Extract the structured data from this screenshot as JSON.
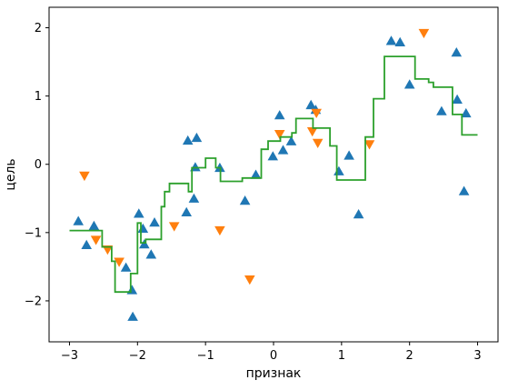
{
  "chart_data": {
    "type": "scatter",
    "title": "",
    "xlabel": "признак",
    "ylabel": "цель",
    "xlim": [
      -3.3,
      3.3
    ],
    "ylim": [
      -2.6,
      2.3
    ],
    "xticks": [
      -3,
      -2,
      -1,
      0,
      1,
      2,
      3
    ],
    "yticks": [
      -2,
      -1,
      0,
      1,
      2
    ],
    "xtick_labels": [
      "−3",
      "−2",
      "−1",
      "0",
      "1",
      "2",
      "3"
    ],
    "ytick_labels": [
      "−2",
      "−1",
      "0",
      "1",
      "2"
    ],
    "grid": false,
    "legend": "none",
    "series": [
      {
        "marker": "triangle-up",
        "color": "#1f77b4",
        "points": [
          [
            -2.87,
            -0.84
          ],
          [
            -2.75,
            -1.19
          ],
          [
            -2.64,
            -0.91
          ],
          [
            -2.17,
            -1.52
          ],
          [
            -2.08,
            -1.85
          ],
          [
            -2.07,
            -2.24
          ],
          [
            -1.98,
            -0.73
          ],
          [
            -1.92,
            -0.95
          ],
          [
            -1.9,
            -1.18
          ],
          [
            -1.8,
            -1.33
          ],
          [
            -1.75,
            -0.86
          ],
          [
            -1.28,
            -0.71
          ],
          [
            -1.26,
            0.34
          ],
          [
            -1.17,
            -0.51
          ],
          [
            -1.15,
            -0.05
          ],
          [
            -1.13,
            0.38
          ],
          [
            -0.79,
            -0.06
          ],
          [
            -0.42,
            -0.54
          ],
          [
            -0.26,
            -0.16
          ],
          [
            -0.01,
            0.11
          ],
          [
            0.09,
            0.71
          ],
          [
            0.14,
            0.2
          ],
          [
            0.26,
            0.33
          ],
          [
            0.55,
            0.86
          ],
          [
            0.62,
            0.79
          ],
          [
            0.96,
            -0.11
          ],
          [
            1.11,
            0.12
          ],
          [
            1.25,
            -0.74
          ],
          [
            1.73,
            1.8
          ],
          [
            1.86,
            1.78
          ],
          [
            2.0,
            1.16
          ],
          [
            2.47,
            0.77
          ],
          [
            2.69,
            1.63
          ],
          [
            2.7,
            0.94
          ],
          [
            2.8,
            -0.4
          ],
          [
            2.83,
            0.74
          ]
        ]
      },
      {
        "marker": "triangle-down",
        "color": "#ff7f0e",
        "points": [
          [
            -2.78,
            -0.16
          ],
          [
            -2.61,
            -1.1
          ],
          [
            -2.44,
            -1.24
          ],
          [
            -2.27,
            -1.42
          ],
          [
            -1.46,
            -0.9
          ],
          [
            -0.79,
            -0.96
          ],
          [
            -0.35,
            -1.68
          ],
          [
            0.09,
            0.45
          ],
          [
            0.57,
            0.49
          ],
          [
            0.63,
            0.76
          ],
          [
            0.65,
            0.32
          ],
          [
            1.41,
            0.3
          ],
          [
            2.21,
            1.93
          ]
        ]
      }
    ],
    "step_line": {
      "color": "#2ca02c",
      "points": [
        [
          -3.0,
          -0.97
        ],
        [
          -2.52,
          -0.97
        ],
        [
          -2.52,
          -1.21
        ],
        [
          -2.38,
          -1.21
        ],
        [
          -2.38,
          -1.42
        ],
        [
          -2.33,
          -1.42
        ],
        [
          -2.33,
          -1.87
        ],
        [
          -2.1,
          -1.87
        ],
        [
          -2.1,
          -1.6
        ],
        [
          -2.0,
          -1.6
        ],
        [
          -2.0,
          -0.86
        ],
        [
          -1.95,
          -0.86
        ],
        [
          -1.95,
          -1.15
        ],
        [
          -1.88,
          -1.15
        ],
        [
          -1.88,
          -1.1
        ],
        [
          -1.65,
          -1.1
        ],
        [
          -1.65,
          -0.62
        ],
        [
          -1.6,
          -0.62
        ],
        [
          -1.6,
          -0.4
        ],
        [
          -1.53,
          -0.4
        ],
        [
          -1.53,
          -0.28
        ],
        [
          -1.25,
          -0.28
        ],
        [
          -1.25,
          -0.4
        ],
        [
          -1.2,
          -0.4
        ],
        [
          -1.2,
          -0.05
        ],
        [
          -1.0,
          -0.05
        ],
        [
          -1.0,
          0.09
        ],
        [
          -0.85,
          0.09
        ],
        [
          -0.85,
          -0.05
        ],
        [
          -0.78,
          -0.05
        ],
        [
          -0.78,
          -0.25
        ],
        [
          -0.46,
          -0.25
        ],
        [
          -0.46,
          -0.2
        ],
        [
          -0.18,
          -0.2
        ],
        [
          -0.18,
          0.22
        ],
        [
          -0.08,
          0.22
        ],
        [
          -0.08,
          0.34
        ],
        [
          0.1,
          0.34
        ],
        [
          0.1,
          0.4
        ],
        [
          0.27,
          0.4
        ],
        [
          0.27,
          0.46
        ],
        [
          0.33,
          0.46
        ],
        [
          0.33,
          0.67
        ],
        [
          0.58,
          0.67
        ],
        [
          0.58,
          0.53
        ],
        [
          0.83,
          0.53
        ],
        [
          0.83,
          0.27
        ],
        [
          0.93,
          0.27
        ],
        [
          0.93,
          -0.23
        ],
        [
          1.35,
          -0.23
        ],
        [
          1.35,
          0.4
        ],
        [
          1.47,
          0.4
        ],
        [
          1.47,
          0.96
        ],
        [
          1.63,
          0.96
        ],
        [
          1.63,
          1.58
        ],
        [
          2.08,
          1.58
        ],
        [
          2.08,
          1.25
        ],
        [
          2.28,
          1.25
        ],
        [
          2.28,
          1.2
        ],
        [
          2.35,
          1.2
        ],
        [
          2.35,
          1.13
        ],
        [
          2.63,
          1.13
        ],
        [
          2.63,
          0.73
        ],
        [
          2.77,
          0.73
        ],
        [
          2.77,
          0.43
        ],
        [
          3.0,
          0.43
        ]
      ]
    }
  }
}
